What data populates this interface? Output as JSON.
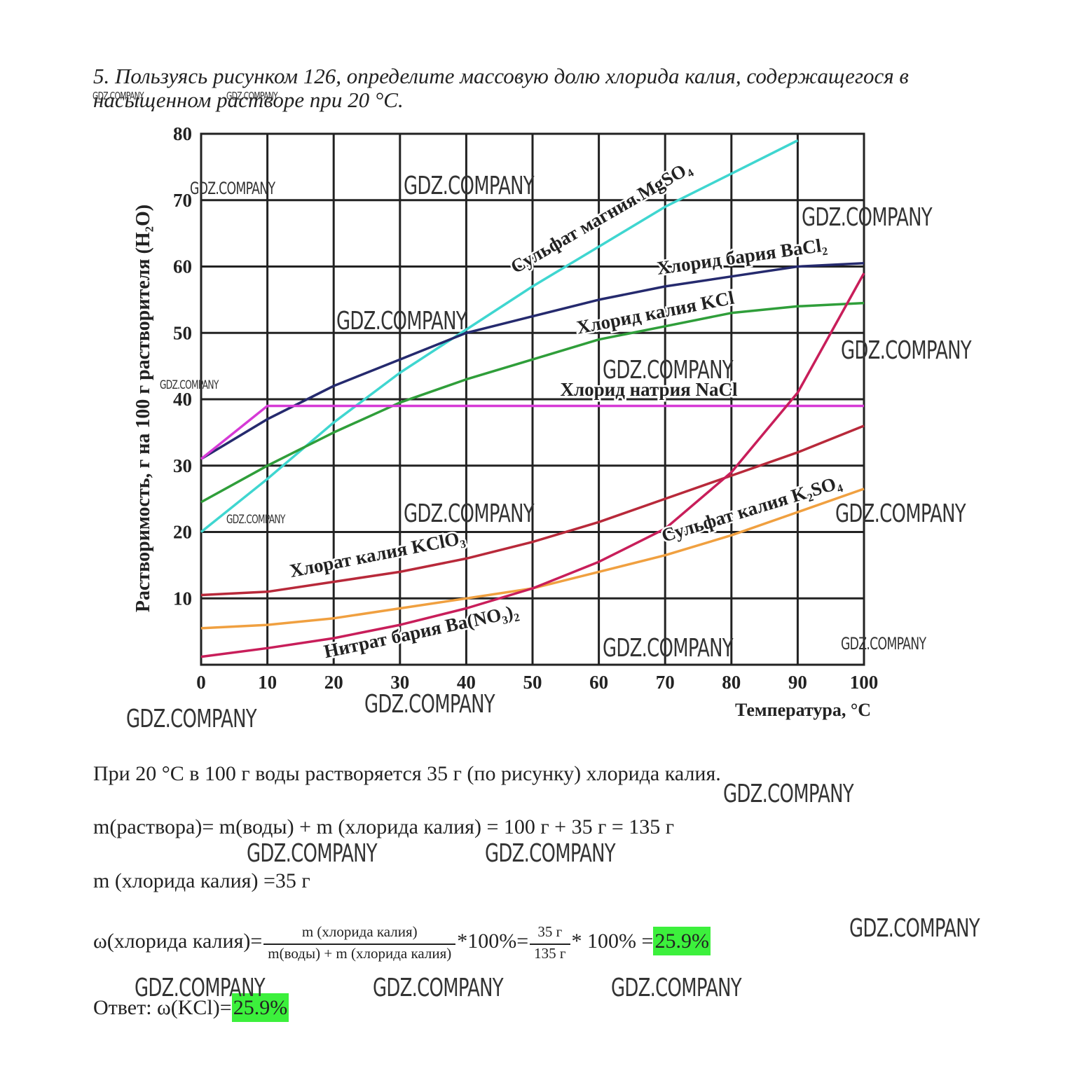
{
  "question": "5. Пользуясь рисунком 126, определите массовую долю хлорида калия, содержащегося в насыщенном растворе при 20 °C.",
  "chart_data": {
    "type": "line",
    "y_label": "Растворимость, г на 100 г растворителя (H₂O)",
    "x_label": "Температура, °C",
    "x": [
      0,
      10,
      20,
      30,
      40,
      50,
      60,
      70,
      80,
      90,
      100
    ],
    "xlim": [
      0,
      100
    ],
    "xticks": [
      0,
      10,
      20,
      30,
      40,
      50,
      60,
      70,
      80,
      90,
      100
    ],
    "ylim": [
      0,
      80
    ],
    "yticks": [
      10,
      20,
      30,
      40,
      50,
      60,
      70,
      80
    ],
    "grid": true,
    "series": [
      {
        "name": "Сульфат магния MgSO₄",
        "color": "#3fd6d0",
        "values": [
          20,
          28,
          36.5,
          44,
          50.5,
          57,
          63,
          69,
          74,
          79,
          null
        ]
      },
      {
        "name": "Хлорид бария BaCl₂",
        "color": "#252a6e",
        "values": [
          31,
          37,
          42,
          46,
          50,
          52.5,
          55,
          57,
          58.5,
          60,
          60.5
        ]
      },
      {
        "name": "Хлорид калия KCl",
        "color": "#2f9e3a",
        "values": [
          24.5,
          30,
          35,
          39.5,
          43,
          46,
          49,
          51,
          53,
          54,
          54.5
        ]
      },
      {
        "name": "Хлорид натрия NaCl",
        "color": "#d63ad6",
        "values": [
          31,
          39,
          39,
          39,
          39,
          39,
          39,
          39,
          39,
          39,
          39
        ]
      },
      {
        "name": "Хлорат калия KClO₃",
        "color": "#b8293a",
        "values": [
          10.5,
          11,
          12.5,
          14,
          16,
          18.5,
          21.5,
          25,
          28.5,
          32,
          36
        ]
      },
      {
        "name": "Сульфат калия K₂SO₄",
        "color": "#f0a040",
        "values": [
          5.5,
          6,
          7,
          8.5,
          10,
          11.5,
          14,
          16.5,
          19.5,
          23,
          26.5
        ]
      },
      {
        "name": "Нитрат бария Ba(NO₃)₂",
        "color": "#c81e5a",
        "values": [
          1.2,
          2.5,
          4,
          6,
          8.5,
          11.5,
          15.5,
          20.5,
          29,
          41,
          59
        ]
      }
    ]
  },
  "solution": {
    "line1": "При 20 °C в 100 г воды растворяется 35 г (по рисунку) хлорида калия.",
    "line2": "m(раствора)= m(воды) + m (хлорида калия) = 100 г + 35 г = 135 г",
    "line3": "m (хлорида калия) =35 г",
    "formula": {
      "lhs": "ω(хлорида калия)=",
      "num1": "m (хлорида калия)",
      "den1": "m(воды) + m (хлорида калия)",
      "mid": "*100%=",
      "num2": "35 г",
      "den2": "135 г",
      "tail": "* 100% =",
      "result": "25.9%"
    },
    "answer": {
      "label": "Ответ: ω(KCl)=",
      "result": "25.9%"
    }
  },
  "watermark": "GDZ.COMPANY"
}
